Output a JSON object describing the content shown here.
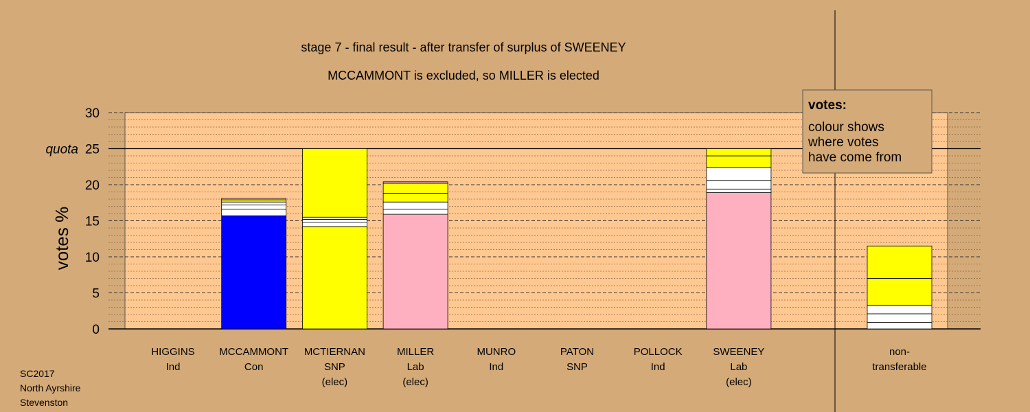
{
  "chart_data": {
    "type": "bar",
    "stacked": true,
    "title": "stage 7 - final result - after transfer of surplus of SWEENEY",
    "subtitle": "MCCAMMONT is excluded, so MILLER is elected",
    "ylabel": "votes %",
    "ylim": [
      0,
      30
    ],
    "yticks": [
      0,
      5,
      10,
      15,
      20,
      25,
      30
    ],
    "quota": {
      "value": 25,
      "label": "quota"
    },
    "grid": true,
    "legend": {
      "title": "votes:",
      "lines": [
        "colour shows",
        "where votes",
        "have come from"
      ],
      "position": "top-right"
    },
    "colors": {
      "Con": "#0000ff",
      "SNP": "#ffff00",
      "Lab": "#ffb0c0",
      "Ind": "#ffffff",
      "plot_bg": "#ffc890",
      "page_bg": "#d4aa78"
    },
    "categories": [
      {
        "name": "HIGGINS",
        "party": "Ind",
        "note": "",
        "segments": []
      },
      {
        "name": "MCCAMMONT",
        "party": "Con",
        "note": "",
        "segments": [
          {
            "value": 15.7,
            "color": "#0000ff"
          },
          {
            "value": 0.9,
            "color": "#ffffff"
          },
          {
            "value": 0.6,
            "color": "#ffffff"
          },
          {
            "value": 0.4,
            "color": "#ffffff"
          },
          {
            "value": 0.3,
            "color": "#ffff00"
          },
          {
            "value": 0.2,
            "color": "#ffb0c0"
          }
        ]
      },
      {
        "name": "MCTIERNAN",
        "party": "SNP",
        "note": "(elec)",
        "segments": [
          {
            "value": 14.2,
            "color": "#ffff00"
          },
          {
            "value": 0.6,
            "color": "#ffffff"
          },
          {
            "value": 0.4,
            "color": "#ffffff"
          },
          {
            "value": 0.3,
            "color": "#ffffff"
          },
          {
            "value": 9.5,
            "color": "#ffff00"
          }
        ]
      },
      {
        "name": "MILLER",
        "party": "Lab",
        "note": "(elec)",
        "segments": [
          {
            "value": 15.9,
            "color": "#ffb0c0"
          },
          {
            "value": 0.7,
            "color": "#ffffff"
          },
          {
            "value": 1.0,
            "color": "#ffffff"
          },
          {
            "value": 1.2,
            "color": "#ffff00"
          },
          {
            "value": 1.4,
            "color": "#ffff00"
          },
          {
            "value": 0.2,
            "color": "#ffb0c0"
          }
        ]
      },
      {
        "name": "MUNRO",
        "party": "Ind",
        "note": "",
        "segments": []
      },
      {
        "name": "PATON",
        "party": "SNP",
        "note": "",
        "segments": []
      },
      {
        "name": "POLLOCK",
        "party": "Ind",
        "note": "",
        "segments": []
      },
      {
        "name": "SWEENEY",
        "party": "Lab",
        "note": "(elec)",
        "segments": [
          {
            "value": 18.9,
            "color": "#ffb0c0"
          },
          {
            "value": 0.5,
            "color": "#ffffff"
          },
          {
            "value": 1.2,
            "color": "#ffffff"
          },
          {
            "value": 1.8,
            "color": "#ffffff"
          },
          {
            "value": 1.6,
            "color": "#ffff00"
          },
          {
            "value": 1.0,
            "color": "#ffff00"
          }
        ]
      }
    ],
    "nontransferable": {
      "label": [
        "non-",
        "transferable"
      ],
      "segments": [
        {
          "value": 0.9,
          "color": "#ffffff"
        },
        {
          "value": 1.2,
          "color": "#ffffff"
        },
        {
          "value": 1.2,
          "color": "#ffffff"
        },
        {
          "value": 3.7,
          "color": "#ffff00"
        },
        {
          "value": 4.5,
          "color": "#ffff00"
        }
      ]
    }
  },
  "footer": {
    "lines": [
      "SC2017",
      "North Ayrshire",
      "Stevenston"
    ]
  }
}
